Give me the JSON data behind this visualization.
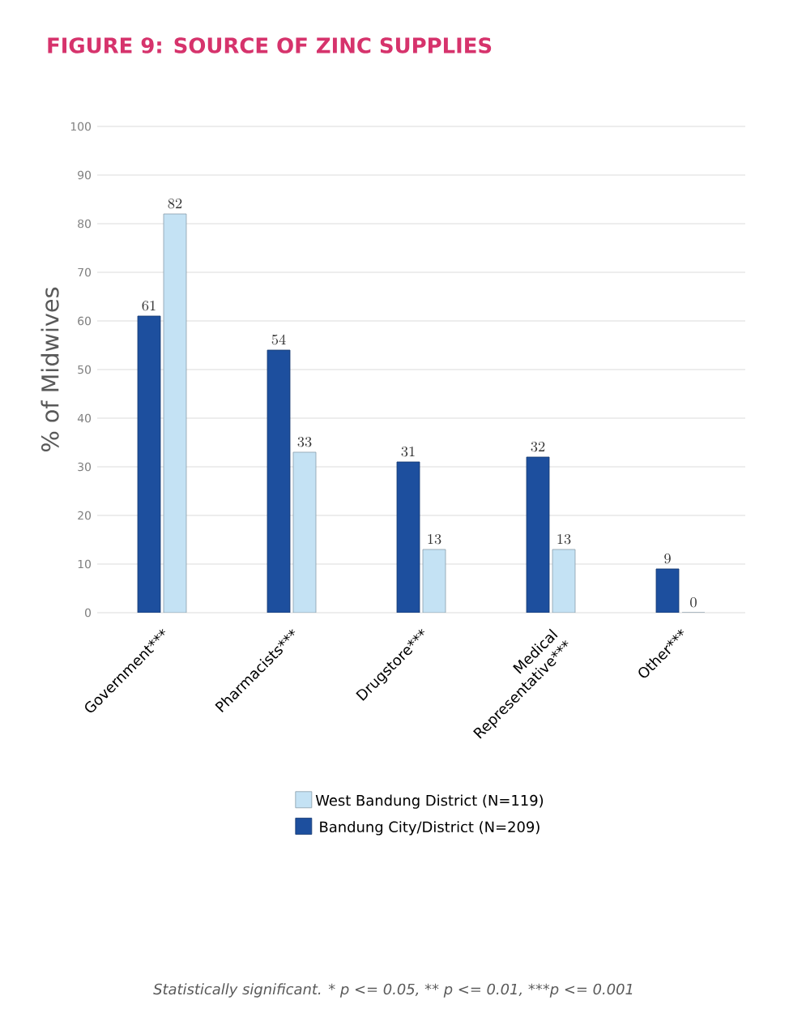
{
  "chart_data": {
    "type": "bar",
    "title": "FIGURE 9: SOURCE OF ZINC SUPPLIES",
    "ylabel": "% of Midwives",
    "categories": [
      "Government***",
      "Pharmacists***",
      "Drugstore***",
      "Medical Representative***",
      "Other***"
    ],
    "series": [
      {
        "name": "Bandung City/District (N=209)",
        "color": "#1d4f9e",
        "values": [
          61,
          54,
          31,
          32,
          9
        ]
      },
      {
        "name": "West Bandung District (N=119)",
        "color": "#c4e2f4",
        "values": [
          82,
          33,
          13,
          13,
          0
        ]
      }
    ],
    "ylim": [
      0,
      100
    ],
    "yticks": [
      0,
      10,
      20,
      30,
      40,
      50,
      60,
      70,
      80,
      90,
      100
    ],
    "grid": "y",
    "legend": "bottom",
    "data_labels": true,
    "annotations": [
      "Statistically significant. * p <= 0.05, ** p <= 0.01, ***p <= 0.001"
    ]
  }
}
